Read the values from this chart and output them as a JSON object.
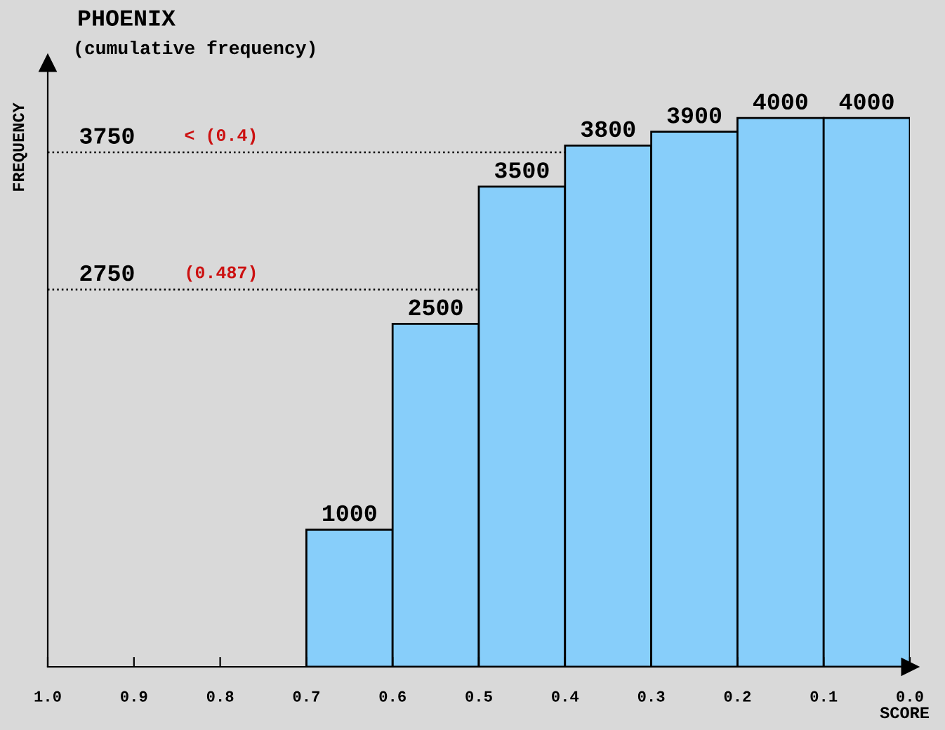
{
  "chart_data": {
    "type": "histogram",
    "title": "PHOENIX",
    "subtitle": "(cumulative frequency)",
    "xlabel": "SCORE",
    "ylabel": "FREQUENCY",
    "bins": [
      0.7,
      0.6,
      0.5,
      0.4,
      0.3,
      0.2,
      0.1,
      0.0
    ],
    "values": [
      1000,
      2500,
      3500,
      3800,
      3900,
      4000,
      4000
    ],
    "color": "#87cefa",
    "data_labels": true,
    "xlim": [
      1,
      0
    ],
    "xticks": [
      {
        "value": 1,
        "label": "1.0"
      },
      0.9,
      0.8,
      0.7,
      0.6,
      0.5,
      0.4,
      0.3,
      0.2,
      0.1,
      {
        "value": 0,
        "label": "0.0"
      }
    ],
    "ylim": [
      0,
      4400
    ],
    "tick_labels": "x",
    "grid": false,
    "legend": false,
    "ref_lines": [
      {
        "axis": "y",
        "value": 3750,
        "label": "3750",
        "color": "#000000",
        "line_style": "dotted"
      },
      {
        "axis": "y",
        "value": 2750,
        "label": "2750",
        "color": "#000000",
        "line_style": "dotted"
      }
    ],
    "annotations": [
      "< (0.4)",
      "(0.487)"
    ]
  }
}
